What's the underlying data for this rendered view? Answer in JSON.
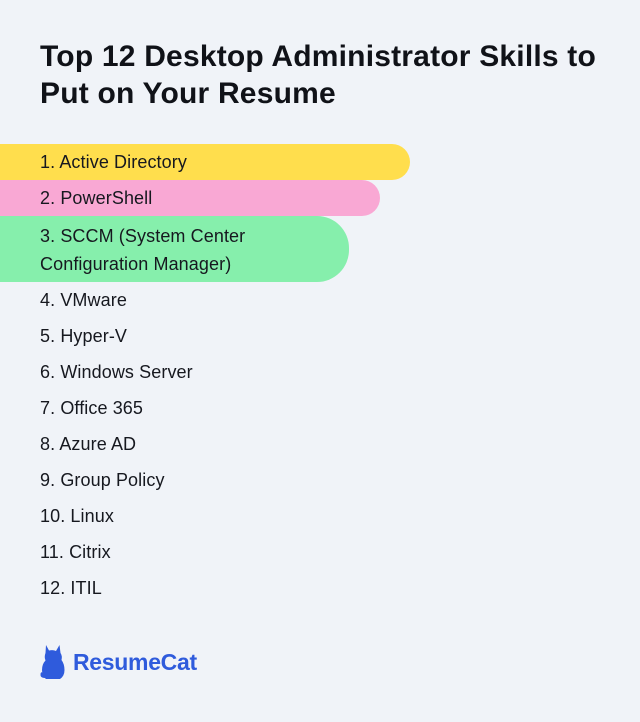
{
  "title": "Top 12 Desktop Administrator Skills to Put on Your Resume",
  "skills": [
    "1. Active Directory",
    "2. PowerShell",
    "3. SCCM (System Center Configuration Manager)",
    "4. VMware",
    "5. Hyper-V",
    "6. Windows Server",
    "7. Office 365",
    "8. Azure AD",
    "9. Group Policy",
    "10. Linux",
    "11. Citrix",
    "12. ITIL"
  ],
  "highlight_colors": {
    "yellow": "#ffde4d",
    "pink": "#f9a8d4",
    "green": "#86efac"
  },
  "brand": {
    "name": "ResumeCat",
    "icon": "cat-icon",
    "color": "#2f5bdc"
  }
}
